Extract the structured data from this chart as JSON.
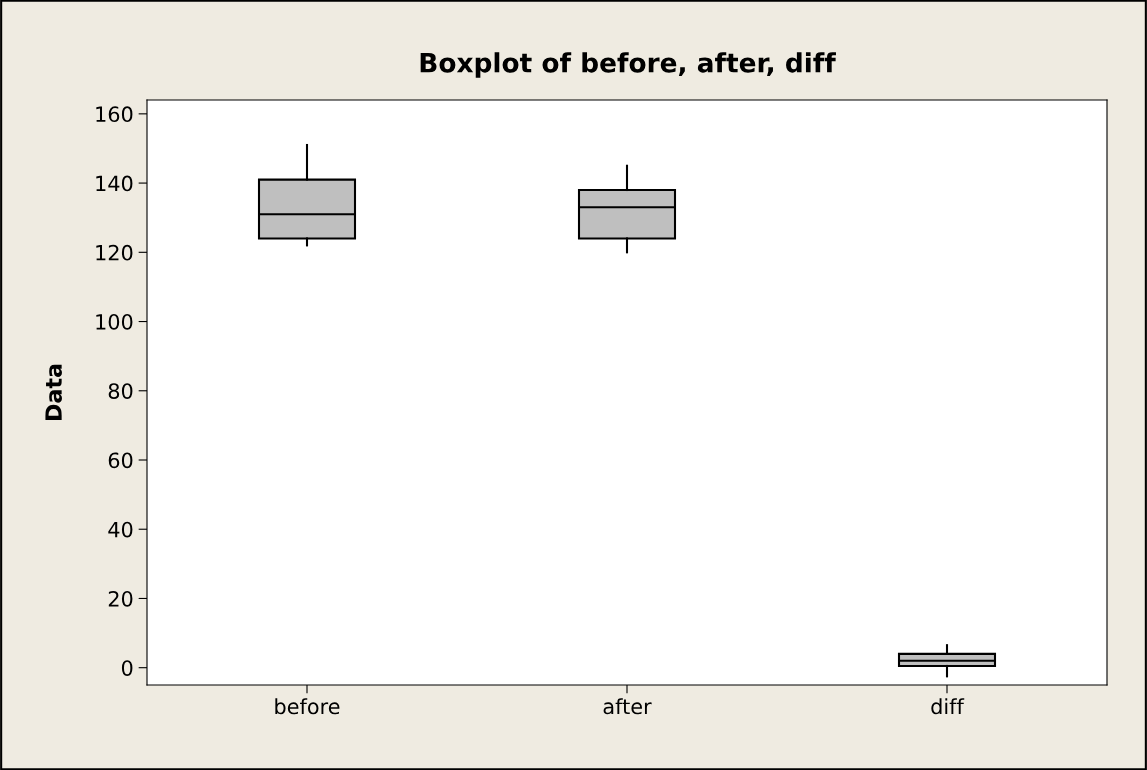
{
  "chart_data": {
    "type": "box",
    "title": "Boxplot of before, after, diff",
    "ylabel": "Data",
    "categories": [
      "before",
      "after",
      "diff"
    ],
    "series": [
      {
        "color": "#bfbfbf",
        "boxes": [
          {
            "low": 122,
            "q1": 124,
            "median": 131,
            "q3": 141,
            "high": 151
          },
          {
            "low": 120,
            "q1": 124,
            "median": 133,
            "q3": 138,
            "high": 145
          },
          {
            "low": -2.5,
            "q1": 0.5,
            "median": 2,
            "q3": 4,
            "high": 6.5
          }
        ]
      }
    ],
    "ylim": [
      -5,
      164
    ],
    "yticks": [
      0,
      20,
      40,
      60,
      80,
      100,
      120,
      140,
      160
    ],
    "grid": false,
    "legend": false
  }
}
